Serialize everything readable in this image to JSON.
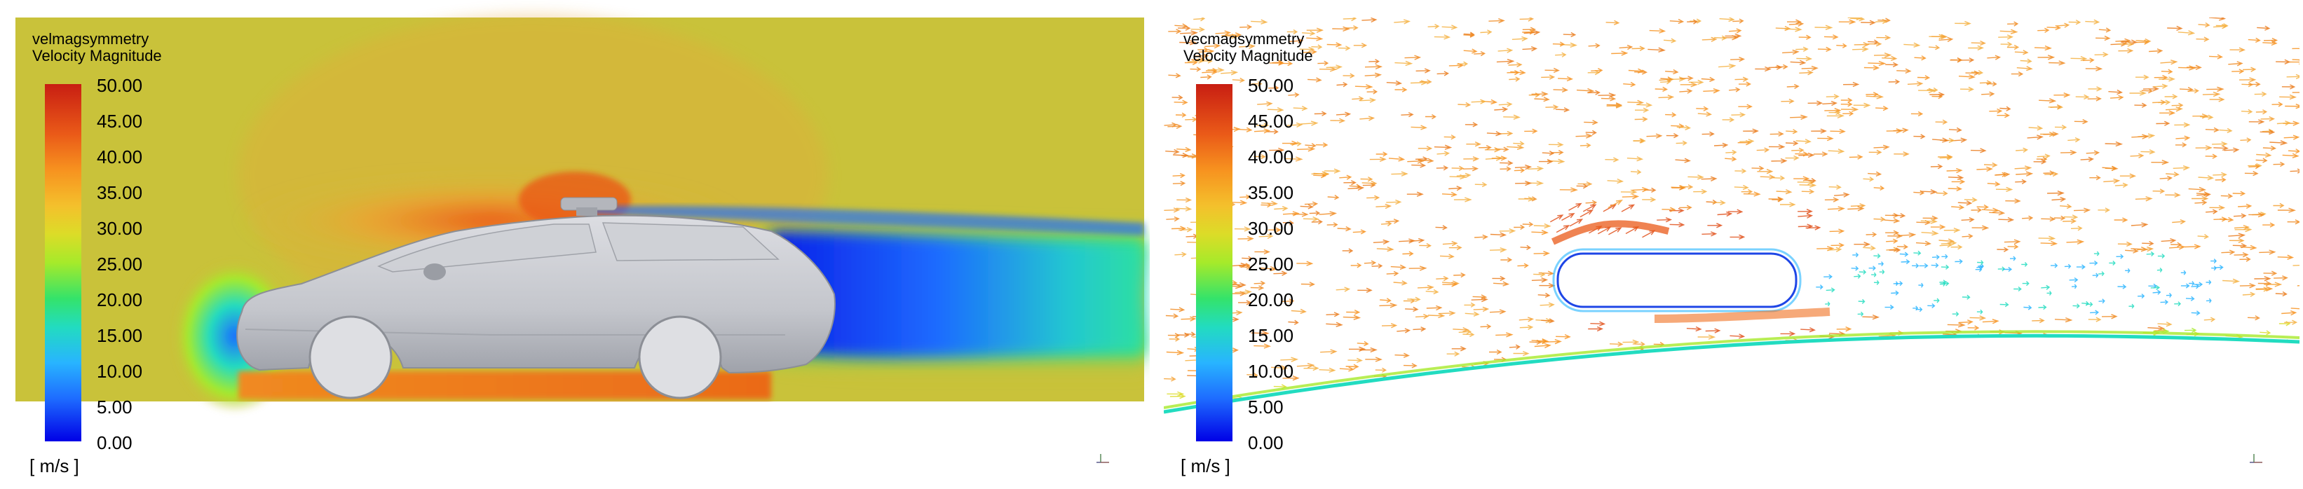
{
  "panels": [
    {
      "variable": "velmagsymmetry",
      "quantity": "Velocity Magnitude",
      "units": "[ m/s ]",
      "ticks": [
        "50.00",
        "45.00",
        "40.00",
        "35.00",
        "30.00",
        "25.00",
        "20.00",
        "15.00",
        "10.00",
        "5.00",
        "0.00"
      ]
    },
    {
      "variable": "vecmagsymmetry",
      "quantity": "Velocity Magnitude",
      "units": "[ m/s ]",
      "ticks": [
        "50.00",
        "45.00",
        "40.00",
        "35.00",
        "30.00",
        "25.00",
        "20.00",
        "15.00",
        "10.00",
        "5.00",
        "0.00"
      ]
    }
  ],
  "colormap": {
    "min": 0,
    "max": 50,
    "stops": [
      "#0000e6",
      "#1e6cff",
      "#28b4ff",
      "#22dcc0",
      "#34e36a",
      "#a6ea2a",
      "#dcdc28",
      "#f4c02c",
      "#f7921f",
      "#ea5a18",
      "#c81e12"
    ]
  },
  "icons": {
    "axis_triad": "axis-triad-icon"
  }
}
